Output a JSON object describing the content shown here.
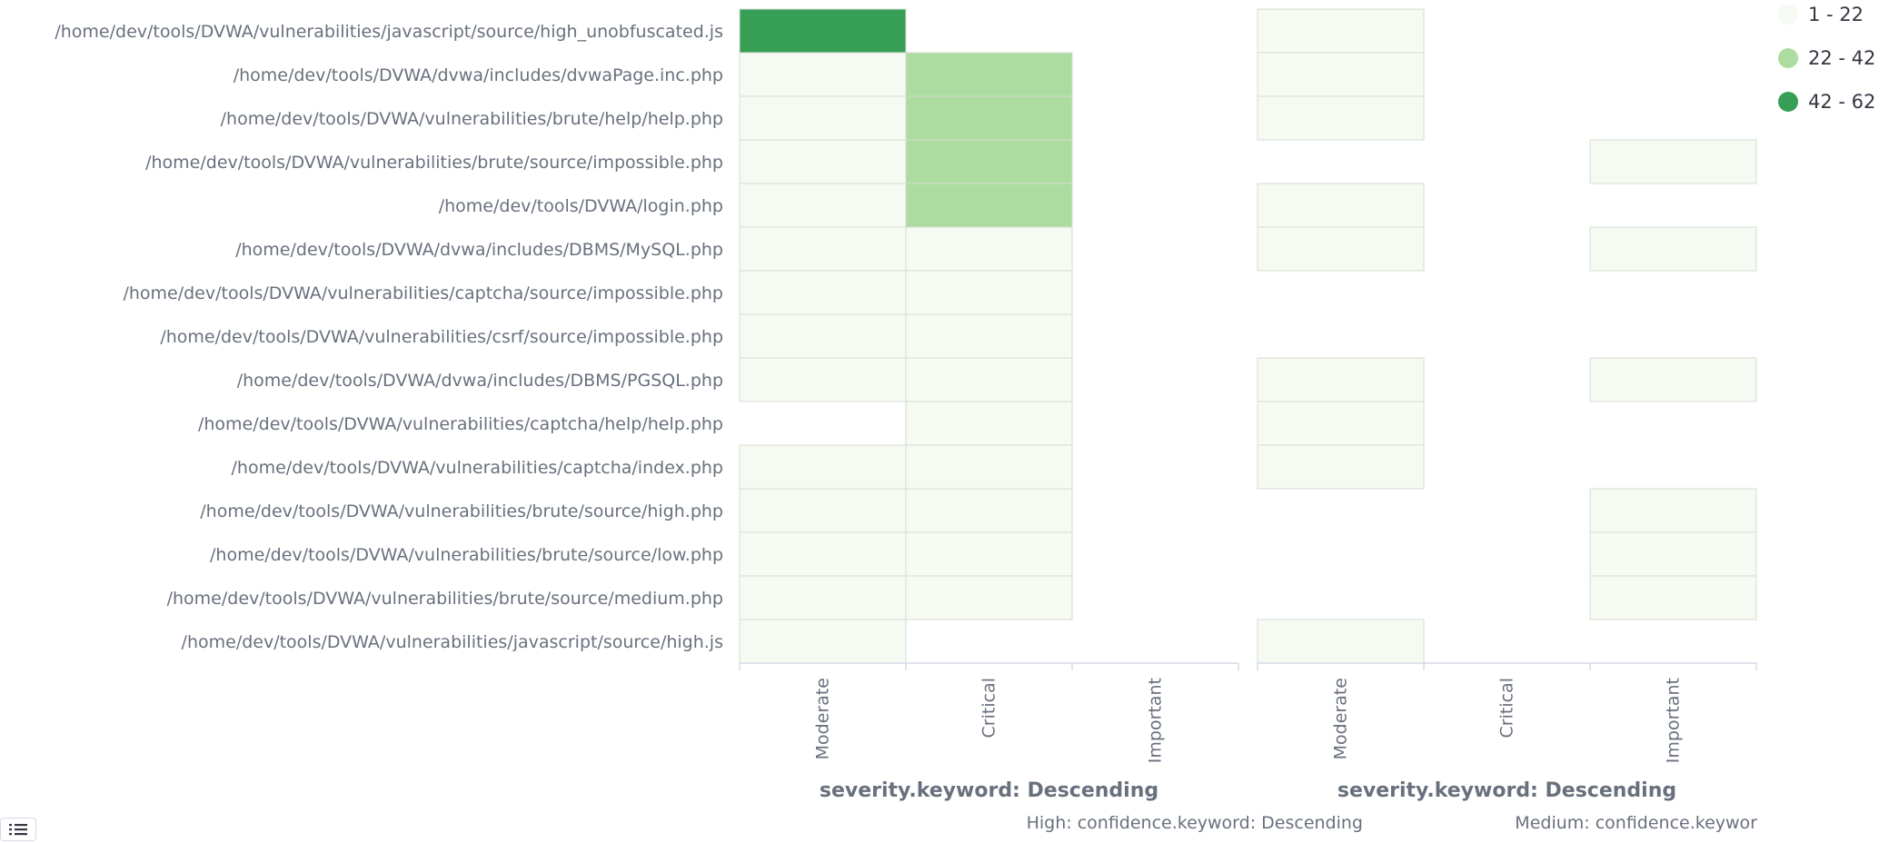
{
  "chart_data": {
    "type": "heatmap",
    "rows": [
      "/home/dev/tools/DVWA/vulnerabilities/javascript/source/high_unobfuscated.js",
      "/home/dev/tools/DVWA/dvwa/includes/dvwaPage.inc.php",
      "/home/dev/tools/DVWA/vulnerabilities/brute/help/help.php",
      "/home/dev/tools/DVWA/vulnerabilities/brute/source/impossible.php",
      "/home/dev/tools/DVWA/login.php",
      "/home/dev/tools/DVWA/dvwa/includes/DBMS/MySQL.php",
      "/home/dev/tools/DVWA/vulnerabilities/captcha/source/impossible.php",
      "/home/dev/tools/DVWA/vulnerabilities/csrf/source/impossible.php",
      "/home/dev/tools/DVWA/dvwa/includes/DBMS/PGSQL.php",
      "/home/dev/tools/DVWA/vulnerabilities/captcha/help/help.php",
      "/home/dev/tools/DVWA/vulnerabilities/captcha/index.php",
      "/home/dev/tools/DVWA/vulnerabilities/brute/source/high.php",
      "/home/dev/tools/DVWA/vulnerabilities/brute/source/low.php",
      "/home/dev/tools/DVWA/vulnerabilities/brute/source/medium.php",
      "/home/dev/tools/DVWA/vulnerabilities/javascript/source/high.js"
    ],
    "columns": [
      "Moderate",
      "Critical",
      "Important"
    ],
    "xlabel": "severity.keyword: Descending",
    "panels": [
      {
        "title": "High: confidence.keyword: Descending",
        "cells": [
          [
            "42 - 62",
            null,
            null
          ],
          [
            "1 - 22",
            "22 - 42",
            null
          ],
          [
            "1 - 22",
            "22 - 42",
            null
          ],
          [
            "1 - 22",
            "22 - 42",
            null
          ],
          [
            "1 - 22",
            "22 - 42",
            null
          ],
          [
            "1 - 22",
            "1 - 22",
            null
          ],
          [
            "1 - 22",
            "1 - 22",
            null
          ],
          [
            "1 - 22",
            "1 - 22",
            null
          ],
          [
            "1 - 22",
            "1 - 22",
            null
          ],
          [
            null,
            "1 - 22",
            null
          ],
          [
            "1 - 22",
            "1 - 22",
            null
          ],
          [
            "1 - 22",
            "1 - 22",
            null
          ],
          [
            "1 - 22",
            "1 - 22",
            null
          ],
          [
            "1 - 22",
            "1 - 22",
            null
          ],
          [
            "1 - 22",
            null,
            null
          ]
        ]
      },
      {
        "title": "Medium: confidence.keywor",
        "cells": [
          [
            "1 - 22",
            null,
            null
          ],
          [
            "1 - 22",
            null,
            null
          ],
          [
            "1 - 22",
            null,
            null
          ],
          [
            null,
            null,
            "1 - 22"
          ],
          [
            "1 - 22",
            null,
            null
          ],
          [
            "1 - 22",
            null,
            "1 - 22"
          ],
          [
            null,
            null,
            null
          ],
          [
            null,
            null,
            null
          ],
          [
            "1 - 22",
            null,
            "1 - 22"
          ],
          [
            "1 - 22",
            null,
            null
          ],
          [
            "1 - 22",
            null,
            null
          ],
          [
            null,
            null,
            "1 - 22"
          ],
          [
            null,
            null,
            "1 - 22"
          ],
          [
            null,
            null,
            "1 - 22"
          ],
          [
            "1 - 22",
            null,
            null
          ]
        ]
      }
    ],
    "legend": [
      {
        "label": "1 - 22",
        "color": "#f5faf2"
      },
      {
        "label": "22 - 42",
        "color": "#acdc9f"
      },
      {
        "label": "42 - 62",
        "color": "#369f55"
      }
    ]
  },
  "legend_toggle": {
    "icon": "list-icon"
  }
}
